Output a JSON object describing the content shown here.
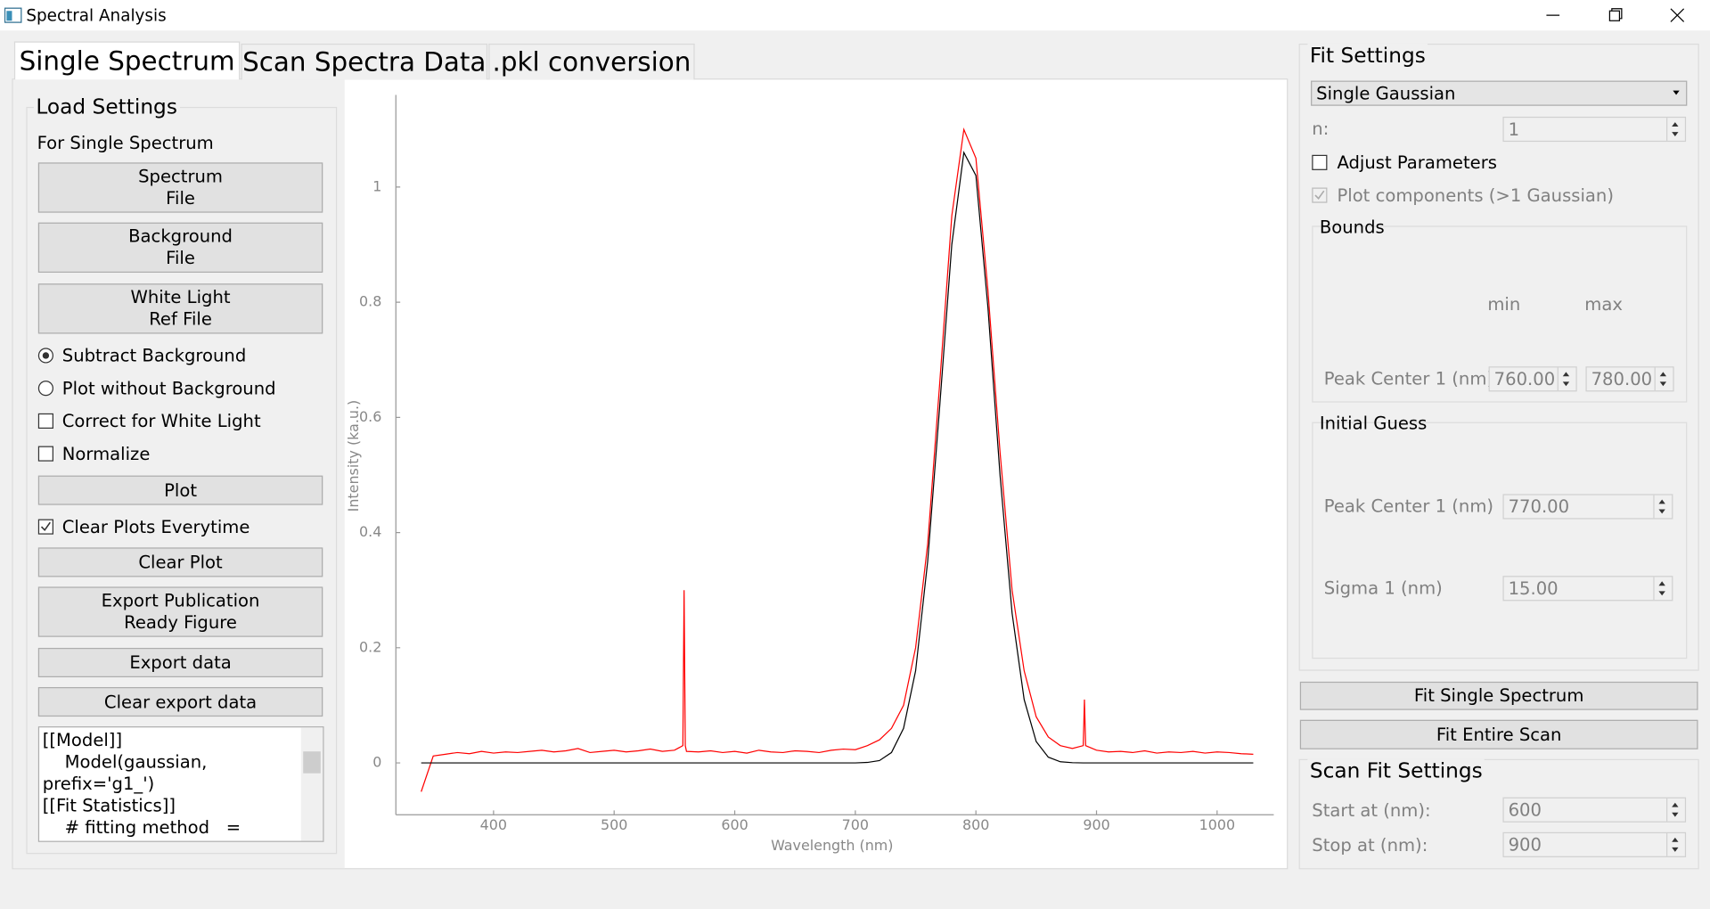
{
  "window": {
    "title": "Spectral Analysis"
  },
  "tabs": [
    "Single Spectrum",
    "Scan Spectra Data",
    ".pkl conversion"
  ],
  "load_settings": {
    "title": "Load Settings",
    "subtitle": "For Single Spectrum",
    "buttons": [
      "Spectrum\nFile",
      "Background\nFile",
      "White Light\nRef File",
      "Plot",
      "Clear Plot",
      "Export Publication\nReady Figure",
      "Export data",
      "Clear export data"
    ],
    "options": [
      {
        "label": "Subtract Background",
        "kind": "radio",
        "checked": true
      },
      {
        "label": "Plot without Background",
        "kind": "radio",
        "checked": false
      },
      {
        "label": "Correct for White Light",
        "kind": "checkbox",
        "checked": false
      },
      {
        "label": "Normalize",
        "kind": "checkbox",
        "checked": false
      },
      {
        "label": "Clear Plots Everytime",
        "kind": "checkbox",
        "checked": true
      }
    ],
    "output_lines": [
      "[[Model]]",
      "    Model(gaussian, prefix='g1_')",
      "[[Fit Statistics]]",
      "    # fitting method   = leastsq"
    ]
  },
  "fit_settings": {
    "title": "Fit Settings",
    "model": "Single Gaussian",
    "n_label": "n:",
    "n_value": "1",
    "adjust_parameters": {
      "label": "Adjust Parameters",
      "checked": false
    },
    "plot_components": {
      "label": "Plot components (>1 Gaussian)",
      "checked": true
    },
    "bounds": {
      "title": "Bounds",
      "min_label": "min",
      "max_label": "max",
      "row_label": "Peak Center 1 (nm)",
      "min": "760.00",
      "max": "780.00"
    },
    "initial_guess": {
      "title": "Initial Guess",
      "rows": [
        {
          "label": "Peak Center 1 (nm)",
          "value": "770.00"
        },
        {
          "label": "Sigma 1 (nm)",
          "value": "15.00"
        }
      ]
    },
    "buttons": [
      "Fit Single Spectrum",
      "Fit Entire Scan"
    ]
  },
  "scan_fit_settings": {
    "title": "Scan Fit Settings",
    "rows": [
      {
        "label": "Start at (nm):",
        "value": "600"
      },
      {
        "label": "Stop at (nm):",
        "value": "900"
      }
    ]
  },
  "chart_data": {
    "type": "line",
    "x_label": "Wavelength (nm)",
    "y_label": "Intensity (ka.u.)",
    "x": [
      340,
      350,
      360,
      370,
      380,
      390,
      400,
      410,
      420,
      430,
      440,
      450,
      460,
      470,
      480,
      490,
      500,
      510,
      520,
      530,
      540,
      550,
      557,
      558,
      559,
      560,
      570,
      580,
      590,
      600,
      610,
      620,
      630,
      640,
      650,
      660,
      670,
      680,
      690,
      700,
      710,
      720,
      730,
      740,
      750,
      760,
      770,
      780,
      790,
      800,
      810,
      820,
      830,
      840,
      850,
      860,
      870,
      880,
      889,
      890,
      891,
      900,
      910,
      920,
      930,
      940,
      950,
      960,
      970,
      980,
      990,
      1000,
      1010,
      1020,
      1030
    ],
    "series": [
      {
        "color": "#ff0000",
        "values": [
          -0.05,
          0.012,
          0.015,
          0.018,
          0.016,
          0.02,
          0.017,
          0.019,
          0.018,
          0.02,
          0.022,
          0.019,
          0.021,
          0.025,
          0.018,
          0.02,
          0.022,
          0.019,
          0.021,
          0.024,
          0.02,
          0.022,
          0.03,
          0.3,
          0.03,
          0.02,
          0.019,
          0.021,
          0.018,
          0.02,
          0.017,
          0.022,
          0.019,
          0.018,
          0.021,
          0.02,
          0.018,
          0.022,
          0.024,
          0.023,
          0.03,
          0.04,
          0.06,
          0.1,
          0.2,
          0.38,
          0.66,
          0.95,
          1.1,
          1.05,
          0.82,
          0.54,
          0.3,
          0.16,
          0.08,
          0.045,
          0.03,
          0.025,
          0.03,
          0.11,
          0.03,
          0.022,
          0.019,
          0.02,
          0.018,
          0.021,
          0.017,
          0.019,
          0.018,
          0.02,
          0.017,
          0.019,
          0.018,
          0.016,
          0.015
        ]
      },
      {
        "color": "#000000",
        "values": [
          0,
          0,
          0,
          0,
          0,
          0,
          0,
          0,
          0,
          0,
          0,
          0,
          0,
          0,
          0,
          0,
          0,
          0,
          0,
          0,
          0,
          0,
          0,
          0,
          0,
          0,
          0,
          0,
          0,
          0,
          0,
          0,
          0,
          0,
          0,
          0,
          0,
          0,
          0,
          0,
          0.0008,
          0.004,
          0.018,
          0.06,
          0.16,
          0.35,
          0.62,
          0.9,
          1.06,
          1.02,
          0.79,
          0.5,
          0.26,
          0.11,
          0.037,
          0.01,
          0.002,
          0.0004,
          0,
          0,
          0,
          0,
          0,
          0,
          0,
          0,
          0,
          0,
          0,
          0,
          0,
          0,
          0,
          0,
          0
        ]
      }
    ],
    "xlim": [
      319,
      1047
    ],
    "ylim": [
      -0.09,
      1.16
    ],
    "xticks": [
      400,
      500,
      600,
      700,
      800,
      900,
      1000
    ],
    "yticks": [
      0,
      0.2,
      0.4,
      0.6,
      0.8,
      1
    ]
  }
}
